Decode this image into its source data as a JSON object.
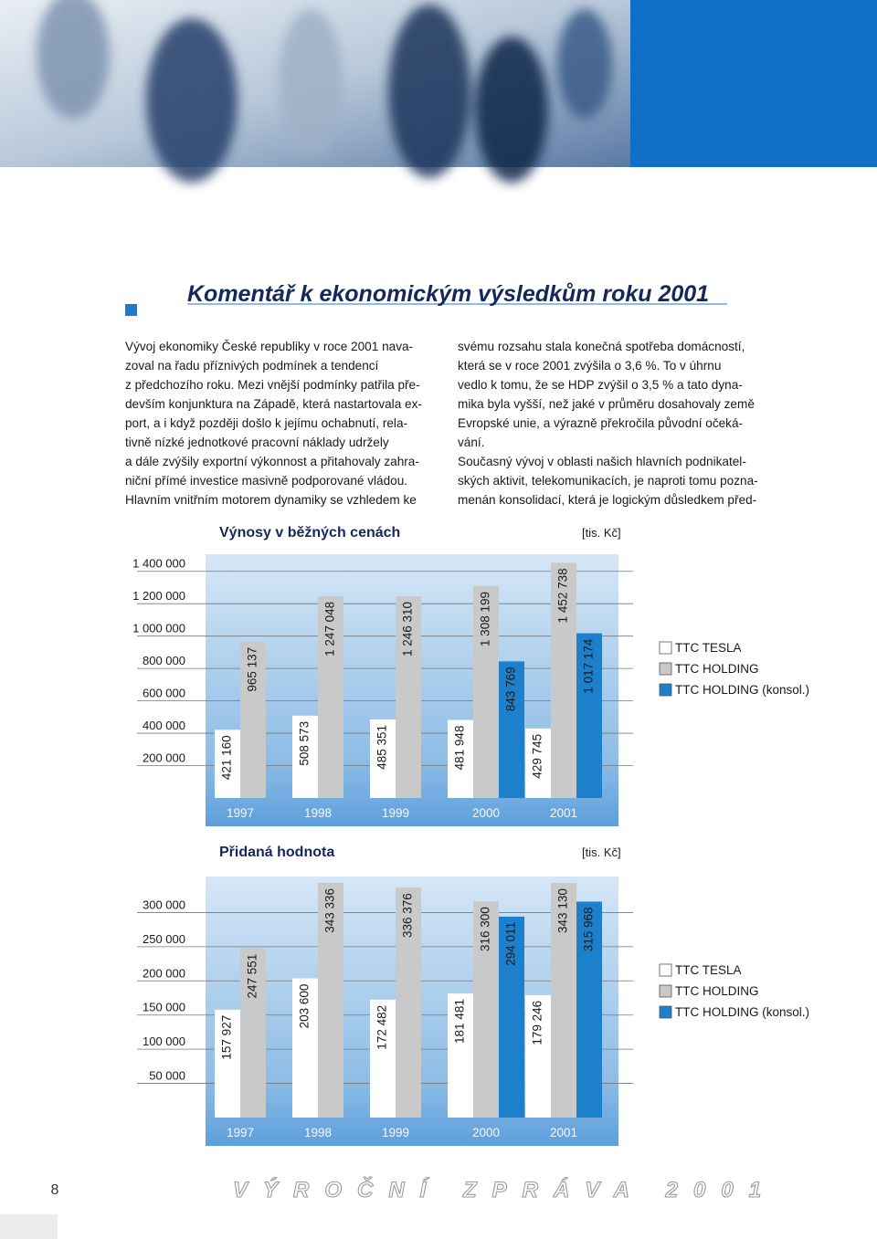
{
  "title": "Komentář k ekonomickým výsledkům roku 2001",
  "left_column": [
    "Vývoj ekonomiky České republiky v roce 2001 nava-",
    "zoval na řadu příznivých podmínek a tendencí",
    "z předchozího roku. Mezi vnější podmínky patřila pře-",
    "devším konjunktura na Západě, která nastartovala ex-",
    "port, a i když později došlo k jejímu ochabnutí, rela-",
    "tivně nízké jednotkové pracovní náklady udržely",
    "a dále zvýšily exportní výkonnost a přitahovaly zahra-",
    "niční přímé investice masivně podporované vládou.",
    "Hlavním vnitřním motorem dynamiky se vzhledem ke"
  ],
  "right_column": [
    "svému rozsahu stala konečná spotřeba domácností,",
    "která se v roce 2001 zvýšila o 3,6 %. To v úhrnu",
    "vedlo k tomu, že se HDP zvýšil o 3,5 % a tato dyna-",
    "mika byla vyšší, než jaké v průměru dosahovaly země",
    "Evropské unie, a výrazně překročila původní očeká-",
    "vání.",
    "Současný vývoj v oblasti našich hlavních podnikatel-",
    "ských aktivit, telekomunikacích, je naproti tomu pozna-",
    "menán konsolidací, která je logickým důsledkem před-"
  ],
  "chart_data": [
    {
      "type": "bar",
      "title": "Výnosy v běžných cenách",
      "unit": "[tis. Kč]",
      "categories": [
        "1997",
        "1998",
        "1999",
        "2000",
        "2001"
      ],
      "series": [
        {
          "name": "TTC TESLA",
          "color": "#ffffff",
          "values": [
            421160,
            508573,
            485351,
            481948,
            429745
          ],
          "value_labels": [
            "421 160",
            "508 573",
            "485 351",
            "481 948",
            "429 745"
          ]
        },
        {
          "name": "TTC HOLDING",
          "color": "#c9c9c9",
          "values": [
            965137,
            1247048,
            1246310,
            1308199,
            1452738
          ],
          "value_labels": [
            "965 137",
            "1 247 048",
            "1 246 310",
            "1 308 199",
            "1 452 738"
          ]
        },
        {
          "name": "TTC HOLDING (konsol.)",
          "color": "#1d80cc",
          "values": [
            null,
            null,
            null,
            843769,
            1017174
          ],
          "value_labels": [
            null,
            null,
            null,
            "843 769",
            "1 017 174"
          ]
        }
      ],
      "ylim": [
        0,
        1500000
      ],
      "yticks": [
        {
          "value": 200000,
          "label": "200 000"
        },
        {
          "value": 400000,
          "label": "400 000"
        },
        {
          "value": 600000,
          "label": "600 000"
        },
        {
          "value": 800000,
          "label": "800 000"
        },
        {
          "value": 1000000,
          "label": "1 000 000"
        },
        {
          "value": 1200000,
          "label": "1 200 000"
        },
        {
          "value": 1400000,
          "label": "1 400 000"
        }
      ],
      "grid": true
    },
    {
      "type": "bar",
      "title": "Přidaná hodnota",
      "unit": "[tis. Kč]",
      "categories": [
        "1997",
        "1998",
        "1999",
        "2000",
        "2001"
      ],
      "series": [
        {
          "name": "TTC TESLA",
          "color": "#ffffff",
          "values": [
            157927,
            203600,
            172482,
            181481,
            179246
          ],
          "value_labels": [
            "157 927",
            "203 600",
            "172 482",
            "181 481",
            "179 246"
          ]
        },
        {
          "name": "TTC HOLDING",
          "color": "#c9c9c9",
          "values": [
            247551,
            343336,
            336376,
            316300,
            343130
          ],
          "value_labels": [
            "247 551",
            "343 336",
            "336 376",
            "316 300",
            "343 130"
          ]
        },
        {
          "name": "TTC HOLDING (konsol.)",
          "color": "#1d80cc",
          "values": [
            null,
            null,
            null,
            294011,
            315968
          ],
          "value_labels": [
            null,
            null,
            null,
            "294 011",
            "315 968"
          ]
        }
      ],
      "ylim": [
        0,
        350000
      ],
      "yticks": [
        {
          "value": 50000,
          "label": "50 000"
        },
        {
          "value": 100000,
          "label": "100 000"
        },
        {
          "value": 150000,
          "label": "150 000"
        },
        {
          "value": 200000,
          "label": "200 000"
        },
        {
          "value": 250000,
          "label": "250 000"
        },
        {
          "value": 300000,
          "label": "300 000"
        }
      ],
      "grid": true
    }
  ],
  "footer": {
    "page_number": "8",
    "publication": "VÝROČNÍ ZPRÁVA 2001"
  }
}
